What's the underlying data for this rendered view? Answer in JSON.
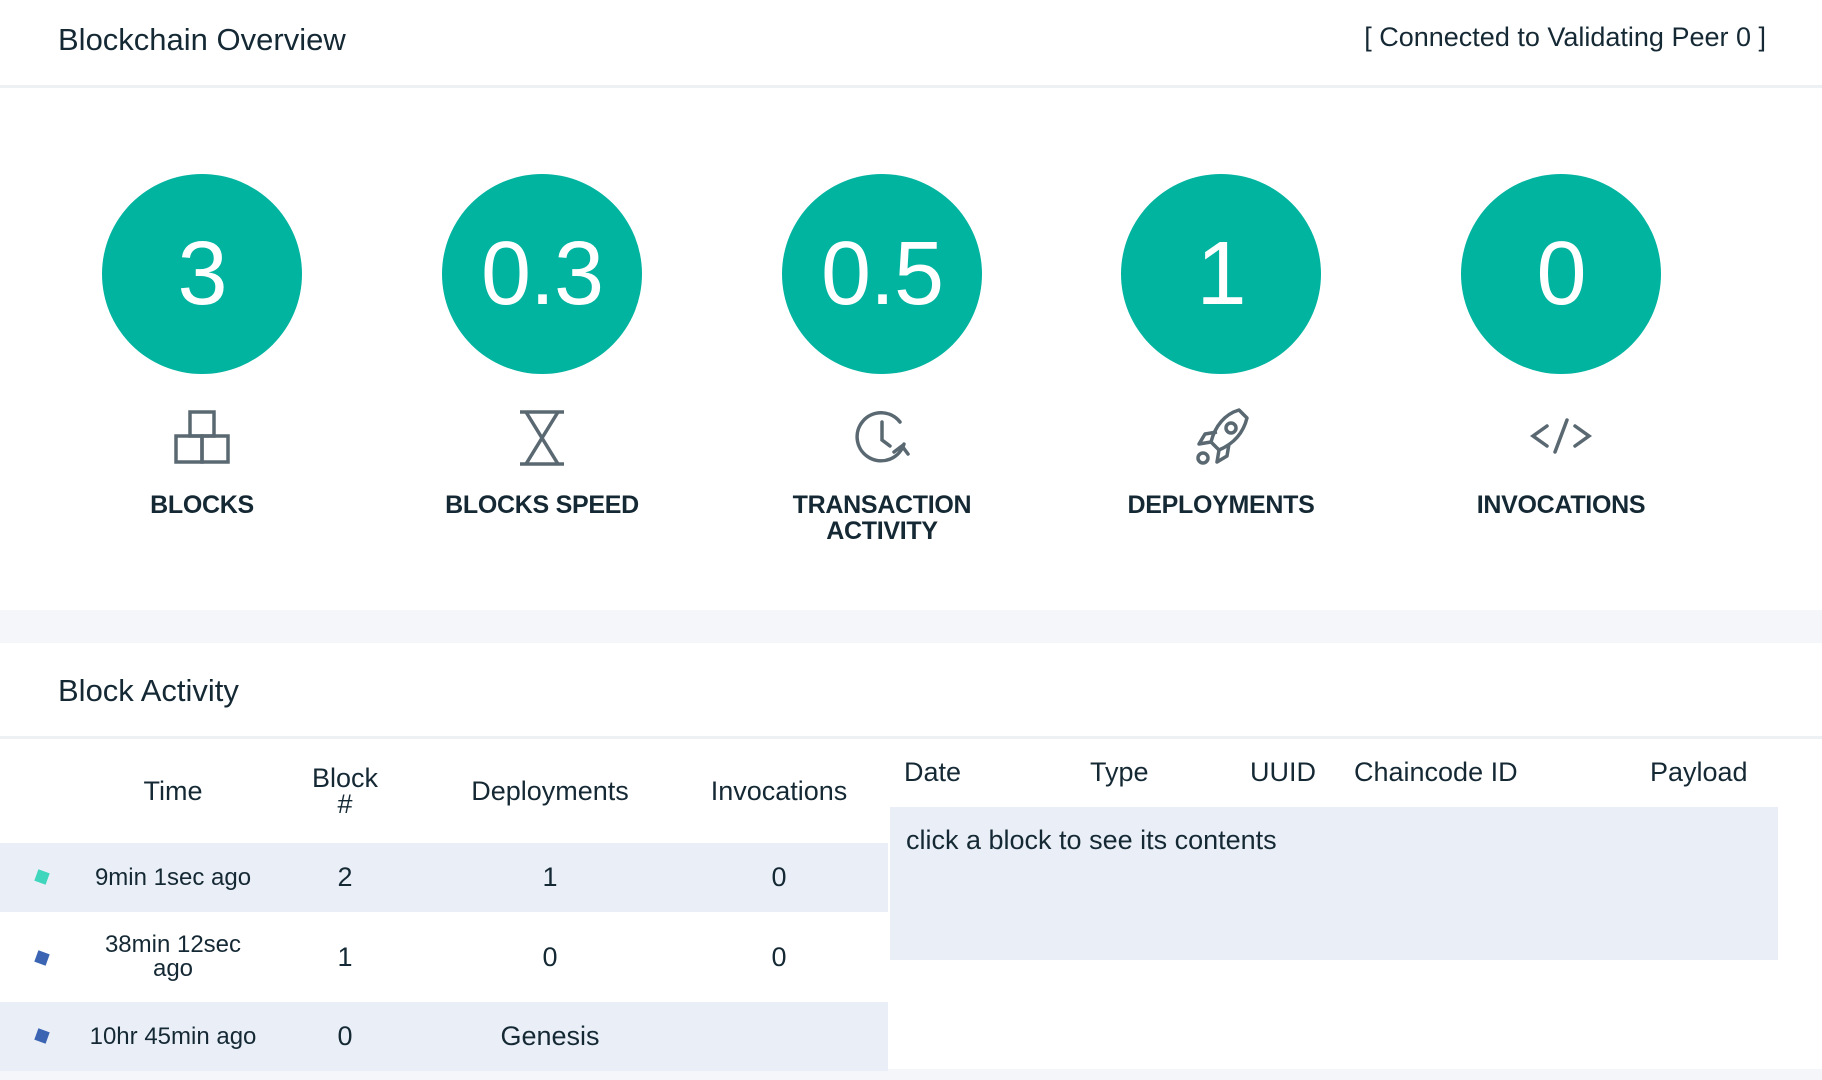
{
  "header": {
    "title": "Blockchain Overview",
    "status": "[ Connected to Validating Peer 0 ]"
  },
  "stats": [
    {
      "value": "3",
      "label": "BLOCKS",
      "icon": "blocks-icon"
    },
    {
      "value": "0.3",
      "label": "BLOCKS SPEED",
      "icon": "hourglass-icon"
    },
    {
      "value": "0.5",
      "label_line1": "TRANSACTION",
      "label_line2": "ACTIVITY",
      "icon": "clock-icon"
    },
    {
      "value": "1",
      "label": "DEPLOYMENTS",
      "icon": "rocket-icon"
    },
    {
      "value": "0",
      "label": "INVOCATIONS",
      "icon": "code-icon"
    }
  ],
  "activity": {
    "title": "Block Activity",
    "columns": {
      "time": "Time",
      "block_line1": "Block",
      "block_line2": "#",
      "deployments": "Deployments",
      "invocations": "Invocations"
    },
    "rows": [
      {
        "time": "9min 1sec ago",
        "block": "2",
        "deployments": "1",
        "invocations": "0",
        "bullet_color": "#3fd6bd"
      },
      {
        "time_line1": "38min 12sec",
        "time_line2": "ago",
        "block": "1",
        "deployments": "0",
        "invocations": "0",
        "bullet_color": "#3b64b3"
      },
      {
        "time": "10hr 45min ago",
        "block": "0",
        "deployments": "Genesis",
        "bullet_color": "#3b64b3"
      }
    ]
  },
  "details": {
    "columns": {
      "date": "Date",
      "type": "Type",
      "uuid": "UUID",
      "chaincode_id": "Chaincode ID",
      "payload": "Payload"
    },
    "hint": "click a block to see its contents"
  },
  "colors": {
    "accent": "#00b4a0",
    "text": "#152935",
    "row_shade": "#eaeff7",
    "icon": "#5a6872"
  }
}
